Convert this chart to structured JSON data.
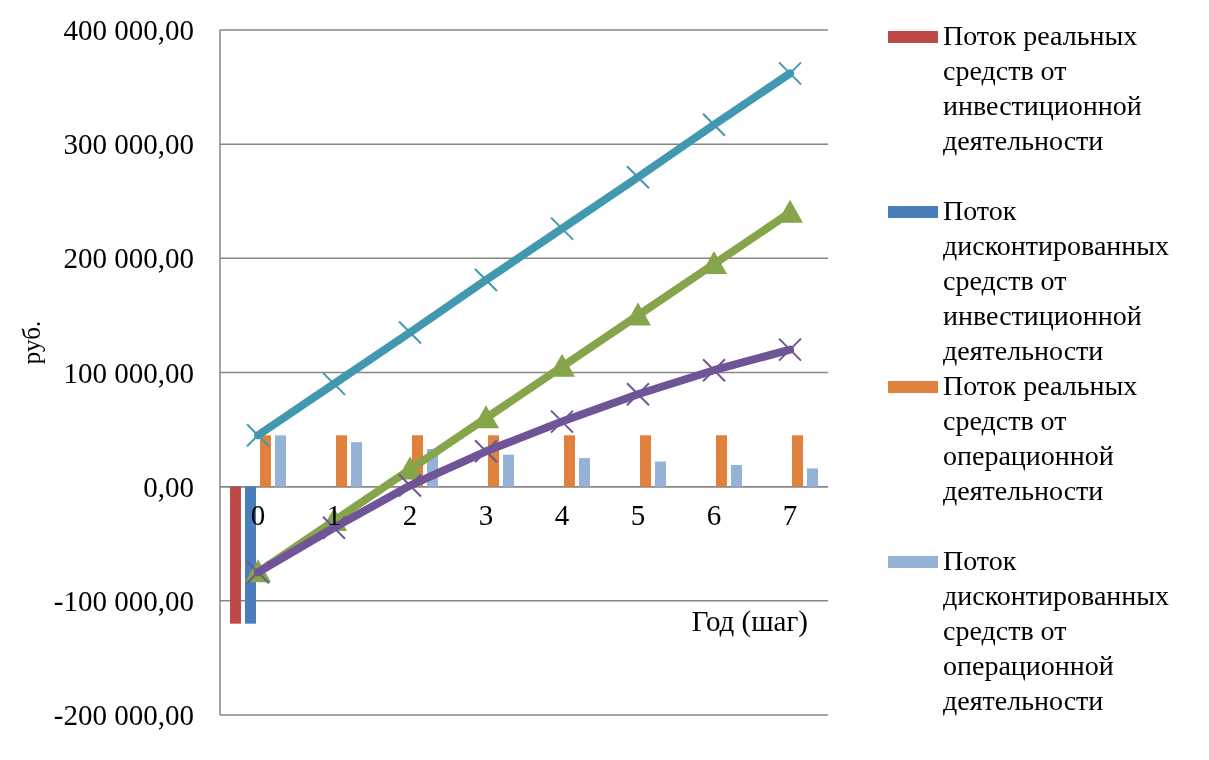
{
  "chart_data": {
    "type": "bar",
    "xlabel": "Год (шаг)",
    "ylabel": "руб.",
    "categories": [
      "0",
      "1",
      "2",
      "3",
      "4",
      "5",
      "6",
      "7"
    ],
    "ylim": [
      -200000,
      400000
    ],
    "yticks": [
      {
        "value": -200000,
        "label": "-200 000,00"
      },
      {
        "value": -100000,
        "label": "-100 000,00"
      },
      {
        "value": 0,
        "label": "0,00"
      },
      {
        "value": 100000,
        "label": "100 000,00"
      },
      {
        "value": 200000,
        "label": "200 000,00"
      },
      {
        "value": 300000,
        "label": "300 000,00"
      },
      {
        "value": 400000,
        "label": "400 000,00"
      }
    ],
    "grid": "y",
    "legend": "right",
    "series": [
      {
        "name": "Поток реальных средств от инвестиционной деятельности",
        "color": "#be4b48",
        "values": [
          -120000,
          null,
          null,
          null,
          null,
          null,
          null,
          null
        ]
      },
      {
        "name": "Поток дисконтированных средств от инвестиционной деятельности",
        "color": "#4a7ebb",
        "values": [
          -120000,
          null,
          null,
          null,
          null,
          null,
          null,
          null
        ]
      },
      {
        "name": "Поток реальных средств от операционной деятельности",
        "color": "#e0823d",
        "values": [
          45000,
          45000,
          45000,
          45000,
          45000,
          45000,
          45000,
          45000
        ]
      },
      {
        "name": "Поток дисконтированных средств от операционной деятельности",
        "color": "#95b3d7",
        "values": [
          45000,
          39000,
          33000,
          28000,
          25000,
          22000,
          19000,
          16000
        ]
      },
      {
        "type": "line",
        "color": "#4198af",
        "marker": "cross",
        "values": [
          45000,
          90000,
          135000,
          181000,
          226000,
          271000,
          317000,
          362000
        ]
      },
      {
        "type": "line",
        "color": "#86a44a",
        "marker": "triangle",
        "values": [
          -75000,
          -30000,
          15000,
          60000,
          105000,
          150000,
          195000,
          240000
        ]
      },
      {
        "type": "line",
        "color": "#6f5597",
        "marker": "cross",
        "values": [
          -75000,
          -36000,
          1000,
          31000,
          57000,
          81000,
          102000,
          120000
        ]
      }
    ]
  }
}
